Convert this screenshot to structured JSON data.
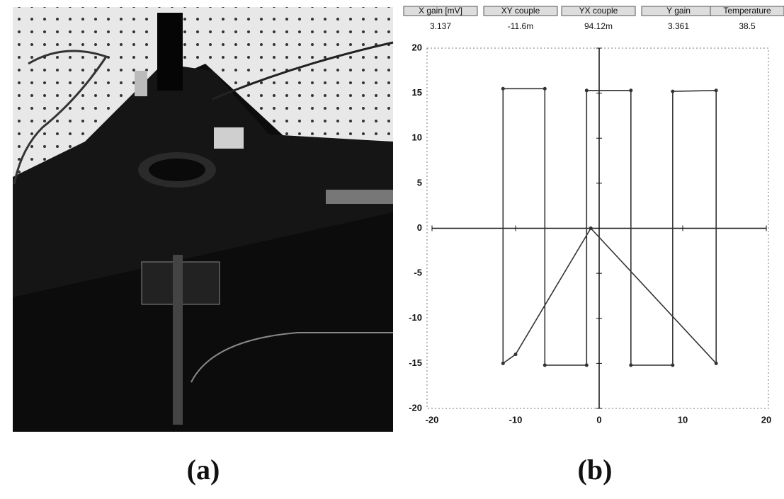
{
  "chart_data": {
    "type": "line",
    "x": [
      -1,
      -10,
      -11.5,
      -11.5,
      -6.5,
      -6.5,
      -1.5,
      -1.5,
      3.8,
      3.8,
      8.8,
      8.8,
      14,
      14,
      -1
    ],
    "values": [
      0,
      -14,
      -15,
      15.5,
      15.5,
      -15.2,
      -15.2,
      15.3,
      15.3,
      -15.2,
      -15.2,
      15.2,
      15.3,
      -15,
      0
    ],
    "color": "#333333",
    "xlim": [
      -20,
      20
    ],
    "xticks": [
      -20,
      -10,
      0,
      10,
      20
    ],
    "ylim": [
      -20,
      20
    ],
    "yticks": [
      -20,
      -15,
      -10,
      -5,
      0,
      5,
      10,
      15,
      20
    ],
    "grid": false
  },
  "readouts": [
    {
      "label": "X gain [mV]",
      "value": "3.137"
    },
    {
      "label": "XY couple",
      "value": "-11.6m"
    },
    {
      "label": "YX couple",
      "value": "94.12m"
    },
    {
      "label": "Y gain",
      "value": "3.361"
    },
    {
      "label": "Temperature",
      "value": "38.5"
    }
  ],
  "panel_labels": [
    "(a)",
    "(b)"
  ]
}
